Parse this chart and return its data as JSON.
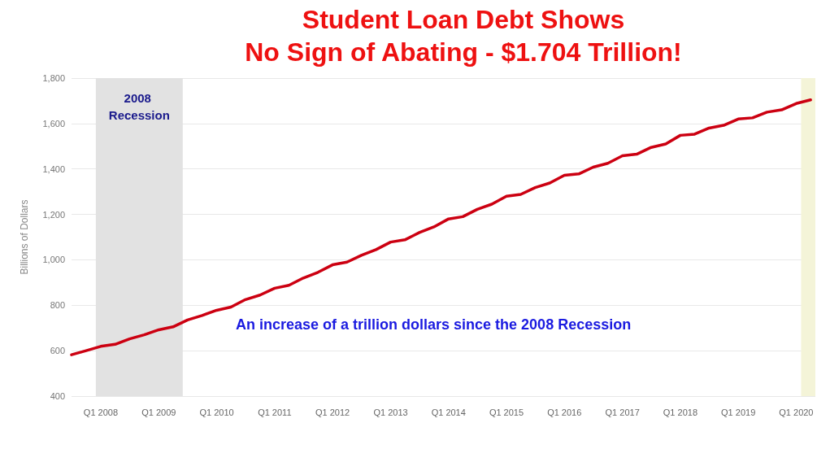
{
  "chart_data": {
    "type": "line",
    "title": "Student Loan Debt Shows No Sign of Abating - $1.704 Trillion!",
    "ylabel": "Billions of Dollars",
    "x": [
      "2007-07",
      "2007-10",
      "2008-01",
      "2008-04",
      "2008-07",
      "2008-10",
      "2009-01",
      "2009-04",
      "2009-07",
      "2009-10",
      "2010-01",
      "2010-04",
      "2010-07",
      "2010-10",
      "2011-01",
      "2011-04",
      "2011-07",
      "2011-10",
      "2012-01",
      "2012-04",
      "2012-07",
      "2012-10",
      "2013-01",
      "2013-04",
      "2013-07",
      "2013-10",
      "2014-01",
      "2014-04",
      "2014-07",
      "2014-10",
      "2015-01",
      "2015-04",
      "2015-07",
      "2015-10",
      "2016-01",
      "2016-04",
      "2016-07",
      "2016-10",
      "2017-01",
      "2017-04",
      "2017-07",
      "2017-10",
      "2018-01",
      "2018-04",
      "2018-07",
      "2018-10",
      "2019-01",
      "2019-04",
      "2019-07",
      "2019-10",
      "2020-01",
      "2020-04"
    ],
    "series": [
      {
        "color": "#cc0011",
        "values": [
          582,
          600,
          619,
          628,
          652,
          670,
          692,
          705,
          735,
          755,
          778,
          792,
          825,
          845,
          875,
          888,
          920,
          945,
          978,
          990,
          1020,
          1045,
          1078,
          1088,
          1120,
          1145,
          1180,
          1190,
          1222,
          1245,
          1280,
          1288,
          1318,
          1338,
          1372,
          1378,
          1408,
          1425,
          1458,
          1465,
          1495,
          1510,
          1548,
          1553,
          1580,
          1592,
          1620,
          1625,
          1650,
          1660,
          1688,
          1704
        ]
      }
    ],
    "xlim": [
      "2007-07",
      "2020-05"
    ],
    "xticks": [
      {
        "value": "2008-01",
        "label": "Q1 2008"
      },
      {
        "value": "2009-01",
        "label": "Q1 2009"
      },
      {
        "value": "2010-01",
        "label": "Q1 2010"
      },
      {
        "value": "2011-01",
        "label": "Q1 2011"
      },
      {
        "value": "2012-01",
        "label": "Q1 2012"
      },
      {
        "value": "2013-01",
        "label": "Q1 2013"
      },
      {
        "value": "2014-01",
        "label": "Q1 2014"
      },
      {
        "value": "2015-01",
        "label": "Q1 2015"
      },
      {
        "value": "2016-01",
        "label": "Q1 2016"
      },
      {
        "value": "2017-01",
        "label": "Q1 2017"
      },
      {
        "value": "2018-01",
        "label": "Q1 2018"
      },
      {
        "value": "2019-01",
        "label": "Q1 2019"
      },
      {
        "value": "2020-01",
        "label": "Q1 2020"
      }
    ],
    "ylim": [
      400,
      1800
    ],
    "yticks": [
      {
        "value": 400,
        "label": "400"
      },
      {
        "value": 600,
        "label": "600"
      },
      {
        "value": 800,
        "label": "800"
      },
      {
        "value": 1000,
        "label": "1,000"
      },
      {
        "value": 1200,
        "label": "1,200"
      },
      {
        "value": 1400,
        "label": "1,400"
      },
      {
        "value": 1600,
        "label": "1,600"
      },
      {
        "value": 1800,
        "label": "1,800"
      }
    ],
    "bands": [
      {
        "axis": "x",
        "from": "2007-12",
        "to": "2009-06",
        "label": "2008 Recession",
        "color": "#e2e2e2"
      },
      {
        "axis": "x",
        "from": "2020-02",
        "to": "2020-05",
        "color": "#f4f4d8"
      }
    ],
    "annotations": [
      "An increase of a trillion dollars since the 2008 Recession"
    ],
    "grid": "y",
    "marker": "none",
    "line_style": "solid"
  }
}
